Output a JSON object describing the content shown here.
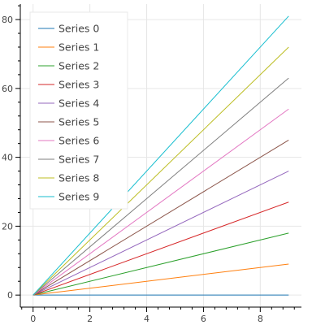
{
  "chart_data": {
    "type": "line",
    "x": [
      0,
      9
    ],
    "series": [
      {
        "name": "Series 0",
        "values": [
          0,
          0
        ],
        "color": "#1f77b4"
      },
      {
        "name": "Series 1",
        "values": [
          0,
          9
        ],
        "color": "#ff7f0e"
      },
      {
        "name": "Series 2",
        "values": [
          0,
          18
        ],
        "color": "#2ca02c"
      },
      {
        "name": "Series 3",
        "values": [
          0,
          27
        ],
        "color": "#d62728"
      },
      {
        "name": "Series 4",
        "values": [
          0,
          36
        ],
        "color": "#9467bd"
      },
      {
        "name": "Series 5",
        "values": [
          0,
          45
        ],
        "color": "#8c564b"
      },
      {
        "name": "Series 6",
        "values": [
          0,
          54
        ],
        "color": "#e377c2"
      },
      {
        "name": "Series 7",
        "values": [
          0,
          63
        ],
        "color": "#7f7f7f"
      },
      {
        "name": "Series 8",
        "values": [
          0,
          72
        ],
        "color": "#bcbd22"
      },
      {
        "name": "Series 9",
        "values": [
          0,
          81
        ],
        "color": "#17becf"
      }
    ],
    "xlim": [
      -0.45,
      9.45
    ],
    "ylim": [
      -3.5,
      84.5
    ],
    "x_ticks": [
      0,
      2,
      4,
      6,
      8
    ],
    "y_ticks": [
      0,
      20,
      40,
      60,
      80
    ],
    "grid": true,
    "legend": "top-left",
    "title": "",
    "xlabel": "",
    "ylabel": ""
  }
}
